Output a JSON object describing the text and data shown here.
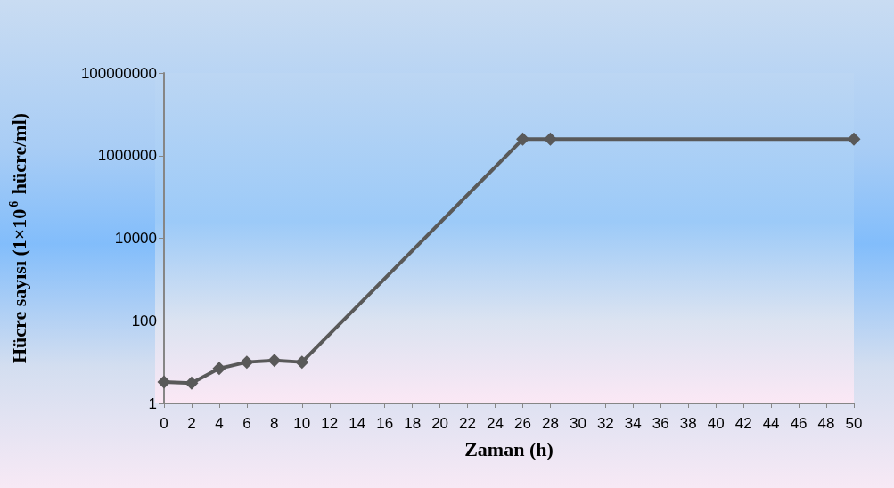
{
  "chart_data": {
    "type": "line",
    "xlabel": "Zaman (h)",
    "ylabel": "Hücre sayısı (1×10$^{6}$ hücre/ml)",
    "x": [
      0,
      2,
      4,
      6,
      8,
      10,
      26,
      28,
      50
    ],
    "series": [
      {
        "color": "#595959",
        "values": [
          3.3,
          3.1,
          7,
          10,
          11,
          10,
          2500000,
          2500000,
          2500000
        ]
      }
    ],
    "xlim": [
      0,
      50
    ],
    "xticks": [
      0,
      2,
      4,
      6,
      8,
      10,
      12,
      14,
      16,
      18,
      20,
      22,
      24,
      26,
      28,
      30,
      32,
      34,
      36,
      38,
      40,
      42,
      44,
      46,
      48,
      50
    ],
    "ylim": [
      1,
      100000000
    ],
    "yticks": [
      1,
      100,
      10000,
      1000000,
      100000000
    ],
    "log": true,
    "grid": false,
    "marker": "diamond",
    "line_style": "solid"
  }
}
